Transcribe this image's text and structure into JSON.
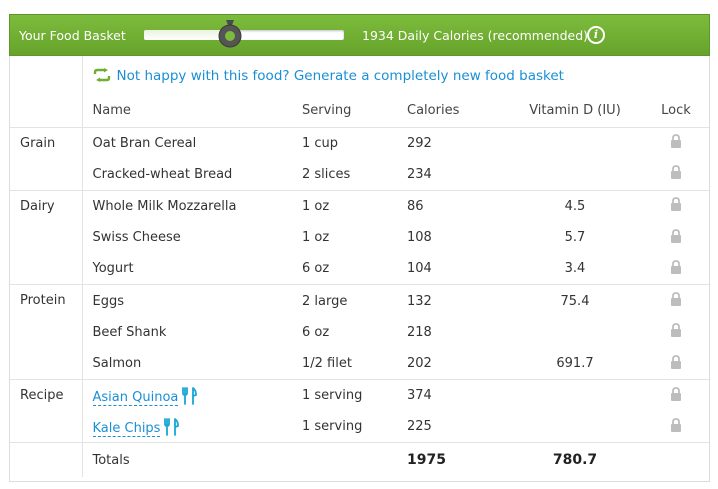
{
  "header": {
    "title": "Your Food Basket",
    "slider_fraction": 0.43,
    "calories_label": "1934 Daily Calories (recommended)",
    "info_icon": "info-icon",
    "bg_color": "#6fae32"
  },
  "regenerate": {
    "icon": "refresh-arrows-icon",
    "label": "Not happy with this food? Generate a completely new food basket",
    "color": "#1a8fd6"
  },
  "columns": {
    "name": "Name",
    "serving": "Serving",
    "calories": "Calories",
    "vitamin": "Vitamin D (IU)",
    "lock": "Lock"
  },
  "groups": [
    {
      "category": "Grain",
      "items": [
        {
          "name": "Oat Bran Cereal",
          "serving": "1 cup",
          "calories": "292",
          "vitamin": "",
          "recipe": false
        },
        {
          "name": "Cracked-wheat Bread",
          "serving": "2 slices",
          "calories": "234",
          "vitamin": "",
          "recipe": false
        }
      ]
    },
    {
      "category": "Dairy",
      "items": [
        {
          "name": "Whole Milk Mozzarella",
          "serving": "1 oz",
          "calories": "86",
          "vitamin": "4.5",
          "recipe": false
        },
        {
          "name": "Swiss Cheese",
          "serving": "1 oz",
          "calories": "108",
          "vitamin": "5.7",
          "recipe": false
        },
        {
          "name": "Yogurt",
          "serving": "6 oz",
          "calories": "104",
          "vitamin": "3.4",
          "recipe": false
        }
      ]
    },
    {
      "category": "Protein",
      "items": [
        {
          "name": "Eggs",
          "serving": "2 large",
          "calories": "132",
          "vitamin": "75.4",
          "recipe": false
        },
        {
          "name": "Beef Shank",
          "serving": "6 oz",
          "calories": "218",
          "vitamin": "",
          "recipe": false
        },
        {
          "name": "Salmon",
          "serving": "1/2 filet",
          "calories": "202",
          "vitamin": "691.7",
          "recipe": false
        }
      ]
    },
    {
      "category": "Recipe",
      "items": [
        {
          "name": "Asian Quinoa",
          "serving": "1 serving",
          "calories": "374",
          "vitamin": "",
          "recipe": true
        },
        {
          "name": "Kale Chips",
          "serving": "1 serving",
          "calories": "225",
          "vitamin": "",
          "recipe": true
        }
      ]
    }
  ],
  "totals": {
    "label": "Totals",
    "calories": "1975",
    "vitamin": "780.7"
  },
  "icons": {
    "lock": "lock-icon",
    "recipe": "fork-knife-icon"
  }
}
